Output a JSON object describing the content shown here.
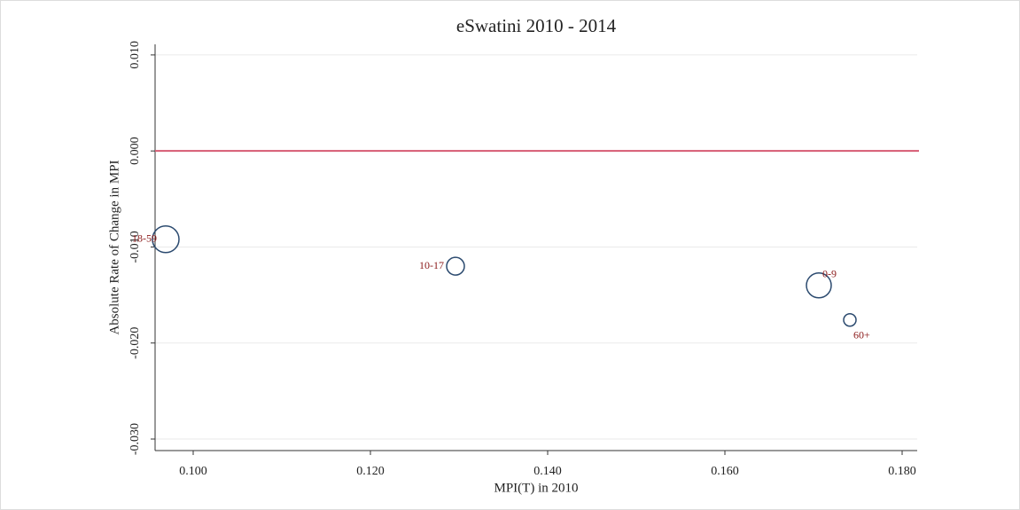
{
  "chart_data": {
    "type": "scatter",
    "title": "eSwatini 2010 - 2014",
    "x_label": "MPI(T) in 2010",
    "y_label": "Absolute Rate of Change in MPI",
    "points": [
      "18-59",
      "10-17",
      "0-9",
      "60+"
    ],
    "x": [
      0.0969,
      0.1296,
      0.1706,
      0.1741
    ],
    "values": [
      -0.0092,
      -0.012,
      -0.014,
      -0.0176
    ],
    "sizes": [
      225,
      100,
      196,
      49
    ],
    "color": "#2b4a6f",
    "label_color": "#8b1a1a",
    "xlim": [
      0.0957,
      0.1817
    ],
    "ylim": [
      -0.0312,
      0.0111
    ],
    "xticks": [
      {
        "value": 0.1,
        "label": "0.100"
      },
      {
        "value": 0.12,
        "label": "0.120"
      },
      {
        "value": 0.14,
        "label": "0.140"
      },
      {
        "value": 0.16,
        "label": "0.160"
      },
      {
        "value": 0.18,
        "label": "0.180"
      }
    ],
    "yticks": [
      {
        "value": -0.03,
        "label": "-0.030"
      },
      {
        "value": -0.02,
        "label": "-0.020"
      },
      {
        "value": -0.01,
        "label": "-0.010"
      },
      {
        "value": 0,
        "label": "0.000"
      },
      {
        "value": 0.01,
        "label": "0.010"
      }
    ],
    "grid": true,
    "reference_line": {
      "y": 0,
      "color": "#d65a72"
    }
  }
}
